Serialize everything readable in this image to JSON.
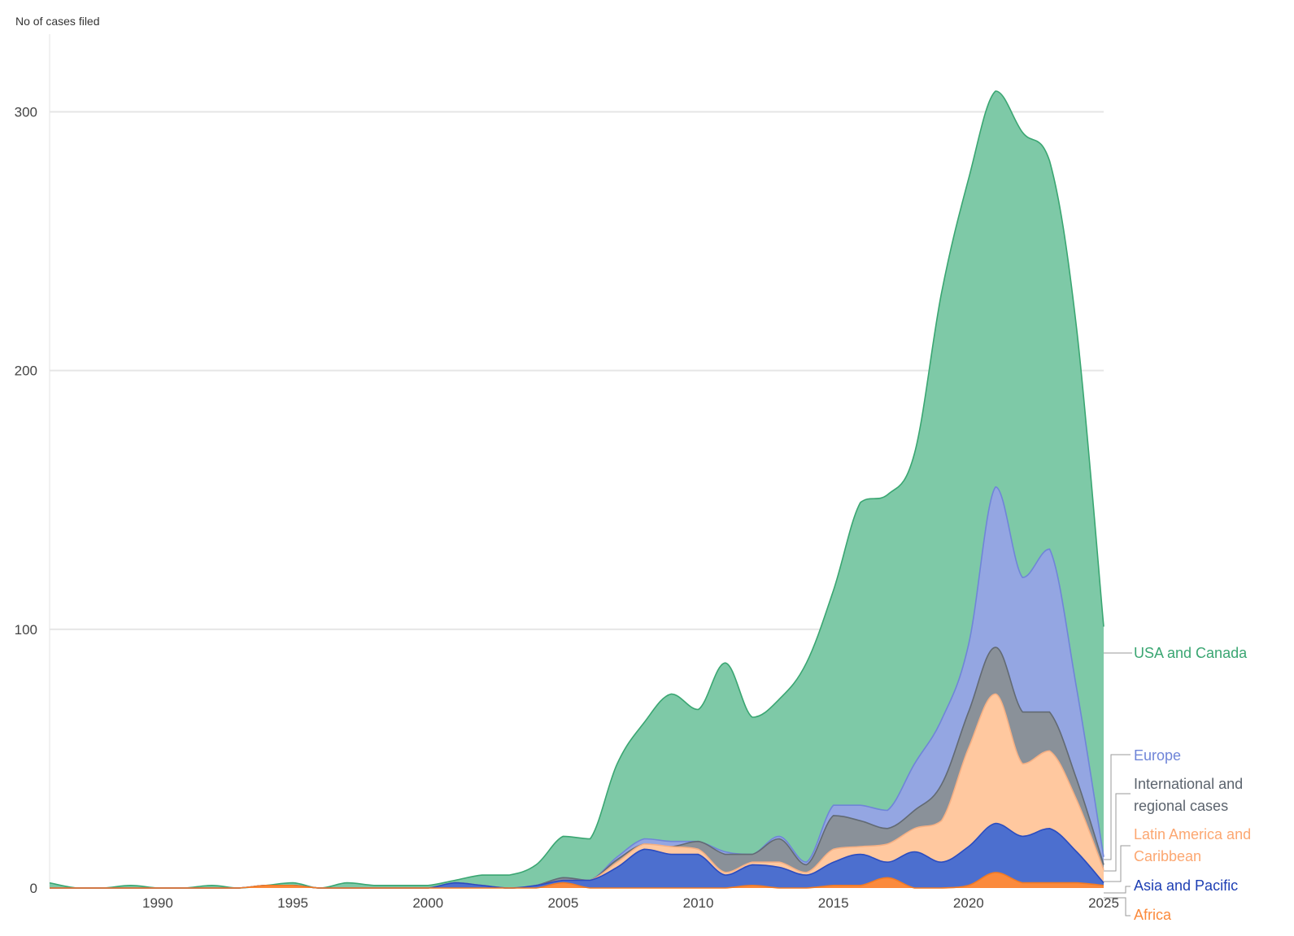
{
  "chart_data": {
    "type": "area",
    "stacked": true,
    "ylabel": "No of cases filed",
    "xlabel": "",
    "xlim": [
      1986,
      2025
    ],
    "ylim": [
      0,
      330
    ],
    "x_ticks": [
      "1990",
      "1995",
      "2000",
      "2005",
      "2010",
      "2015",
      "2020",
      "2025"
    ],
    "y_ticks": [
      "0",
      "100",
      "200",
      "300"
    ],
    "grid": "horizontal",
    "legend": "inline labels at right end of areas",
    "x": [
      1986,
      1987,
      1988,
      1989,
      1990,
      1991,
      1992,
      1993,
      1994,
      1995,
      1996,
      1997,
      1998,
      1999,
      2000,
      2001,
      2002,
      2003,
      2004,
      2005,
      2006,
      2007,
      2008,
      2009,
      2010,
      2011,
      2012,
      2013,
      2014,
      2015,
      2016,
      2017,
      2018,
      2019,
      2020,
      2021,
      2022,
      2023,
      2024,
      2025
    ],
    "series": [
      {
        "name": "Africa",
        "color": "#fb8a3c",
        "values": [
          0,
          0,
          0,
          0,
          0,
          0,
          0,
          0,
          1,
          1,
          0,
          0,
          0,
          0,
          0,
          0,
          0,
          0,
          0,
          2,
          0,
          0,
          0,
          0,
          0,
          0,
          1,
          0,
          0,
          1,
          1,
          4,
          0,
          0,
          1,
          6,
          2,
          2,
          2,
          1
        ]
      },
      {
        "name": "Asia and Pacific",
        "color": "#4c6fcf",
        "values": [
          0,
          0,
          0,
          0,
          0,
          0,
          0,
          0,
          0,
          0,
          0,
          0,
          0,
          0,
          0,
          2,
          1,
          0,
          1,
          1,
          3,
          8,
          15,
          13,
          13,
          5,
          8,
          8,
          5,
          9,
          12,
          6,
          14,
          10,
          15,
          19,
          18,
          21,
          12,
          1
        ]
      },
      {
        "name": "Latin America and Caribbean",
        "color": "#ffc89f",
        "values": [
          0,
          0,
          0,
          0,
          0,
          0,
          0,
          0,
          0,
          0,
          0,
          0,
          0,
          0,
          0,
          0,
          0,
          0,
          0,
          0,
          0,
          2,
          2,
          3,
          2,
          1,
          1,
          2,
          1,
          5,
          3,
          7,
          9,
          16,
          38,
          50,
          28,
          30,
          20,
          5
        ]
      },
      {
        "name": "International and regional cases",
        "color": "#8a9199",
        "values": [
          0,
          0,
          0,
          0,
          0,
          0,
          0,
          0,
          0,
          0,
          0,
          0,
          0,
          0,
          0,
          0,
          0,
          0,
          0,
          1,
          0,
          1,
          0,
          0,
          3,
          7,
          3,
          9,
          3,
          13,
          10,
          6,
          7,
          14,
          14,
          18,
          20,
          15,
          8,
          2
        ]
      },
      {
        "name": "Europe",
        "color": "#94a6e2",
        "values": [
          0,
          0,
          0,
          0,
          0,
          0,
          0,
          0,
          0,
          0,
          0,
          0,
          0,
          0,
          0,
          0,
          0,
          0,
          0,
          0,
          0,
          1,
          2,
          2,
          0,
          1,
          0,
          1,
          1,
          4,
          6,
          7,
          18,
          25,
          26,
          62,
          52,
          63,
          35,
          3
        ]
      },
      {
        "name": "USA and Canada",
        "color": "#7ec9a7",
        "values": [
          2,
          0,
          0,
          1,
          0,
          0,
          1,
          0,
          0,
          1,
          0,
          2,
          1,
          1,
          1,
          1,
          4,
          5,
          8,
          16,
          16,
          36,
          45,
          57,
          51,
          73,
          53,
          53,
          77,
          83,
          117,
          122,
          120,
          165,
          180,
          153,
          172,
          150,
          139,
          89
        ]
      }
    ]
  },
  "labels": {
    "usa": "USA and Canada",
    "europe": "Europe",
    "intl_1": "International and",
    "intl_2": "regional cases",
    "latam_1": "Latin America and",
    "latam_2": "Caribbean",
    "asia": "Asia and Pacific",
    "africa": "Africa"
  },
  "label_colors": {
    "usa": "#3aa672",
    "europe": "#6f85d8",
    "intl": "#5b636d",
    "latam": "#fca771",
    "asia": "#1e3fb4",
    "africa": "#fb8a3c"
  }
}
